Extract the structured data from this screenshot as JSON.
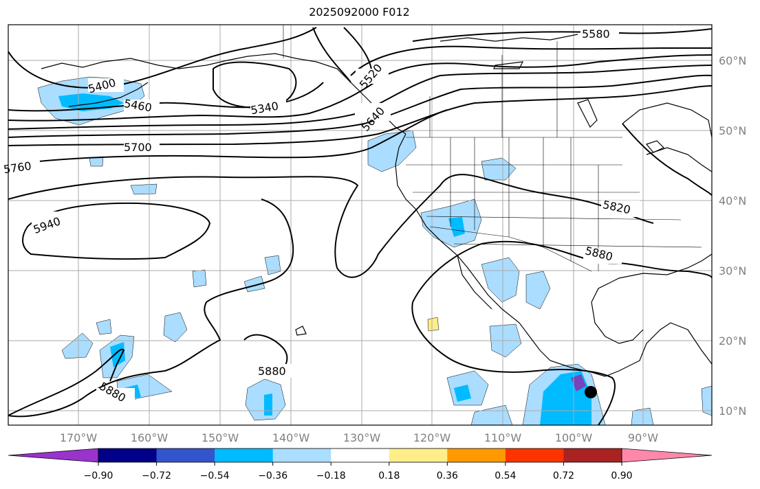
{
  "title": "2025092000 F012",
  "lat_labels": [
    "60°N",
    "50°N",
    "40°N",
    "30°N",
    "20°N",
    "10°N"
  ],
  "lon_labels": [
    "170°W",
    "160°W",
    "150°W",
    "140°W",
    "130°W",
    "120°W",
    "110°W",
    "100°W",
    "90°W"
  ],
  "contour_labels": [
    "5580",
    "5520",
    "5400",
    "5460",
    "5340",
    "5640",
    "5700",
    "5760",
    "5820",
    "5940",
    "5880",
    "5880",
    "5880"
  ],
  "colorbar": {
    "ticks": [
      "−0.90",
      "−0.72",
      "−0.54",
      "−0.36",
      "−0.18",
      "0.18",
      "0.36",
      "0.54",
      "0.72",
      "0.90"
    ],
    "colors": [
      "#9933cc",
      "#000088",
      "#3355cc",
      "#00bbff",
      "#aaddff",
      "#ffffff",
      "#ffee88",
      "#ff9900",
      "#ff3300",
      "#aa2222",
      "#ff88aa"
    ]
  },
  "colors": {
    "light_blue": "#aaddff",
    "cyan": "#00bbff",
    "blue": "#3355cc",
    "purple": "#7744bb",
    "yellow": "#ffee88"
  },
  "marker": "storm-center-dot"
}
